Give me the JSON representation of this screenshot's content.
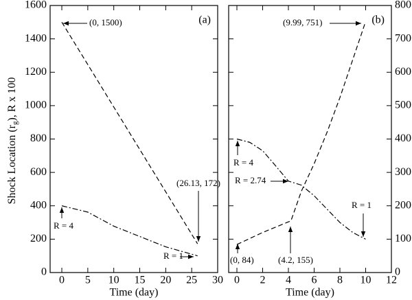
{
  "chart_data": [
    {
      "type": "line",
      "panel_label": "(a)",
      "x_label": "Time (day)",
      "y_label": [
        "Shock Location (r",
        "g",
        "), R x 100"
      ],
      "xlim": [
        -2.25,
        30
      ],
      "xticks": [
        0,
        5,
        10,
        15,
        20,
        25,
        30
      ],
      "ylim": [
        0,
        1600
      ],
      "yticks": [
        0,
        200,
        400,
        600,
        800,
        1000,
        1200,
        1400,
        1600
      ],
      "series": [
        {
          "color": "#000000",
          "dash": "dashed",
          "x": [
            0,
            26.13
          ],
          "values": [
            1500,
            172
          ]
        },
        {
          "color": "#000000",
          "dash": "dashdot",
          "x": [
            0,
            5,
            10,
            15,
            20,
            26.13
          ],
          "values": [
            400,
            362,
            278,
            216,
            154,
            100
          ]
        }
      ],
      "annotations": [
        "(0, 1500)",
        "(26.13, 172)",
        "R = 4",
        "R = 1"
      ]
    },
    {
      "type": "line",
      "panel_label": "(b)",
      "x_label": "Time (day)",
      "xlim": [
        -0.64,
        12
      ],
      "xticks": [
        0,
        2,
        4,
        6,
        8,
        10,
        12
      ],
      "y2lim": [
        0,
        800
      ],
      "y2ticks": [
        0,
        100,
        200,
        300,
        400,
        500,
        600,
        700,
        800
      ],
      "series": [
        {
          "color": "#000000",
          "dash": "dashed",
          "axis": "y2",
          "x": [
            0,
            2,
            4.2,
            5,
            6,
            7,
            8,
            9,
            9.99
          ],
          "values": [
            84,
            120,
            155,
            243,
            326,
            420,
            524,
            638,
            751
          ]
        },
        {
          "color": "#000000",
          "dash": "dashdot",
          "axis": "y2",
          "x": [
            0,
            1,
            2,
            3,
            4,
            5,
            6,
            7,
            8,
            9,
            10
          ],
          "values": [
            400,
            390,
            365,
            320,
            274,
            262,
            230,
            190,
            150,
            120,
            100
          ]
        }
      ],
      "annotations": [
        "(9.99, 751)",
        "R = 4",
        "R = 2.74",
        "R = 1",
        "(0, 84)",
        "(4.2, 155)"
      ]
    }
  ]
}
